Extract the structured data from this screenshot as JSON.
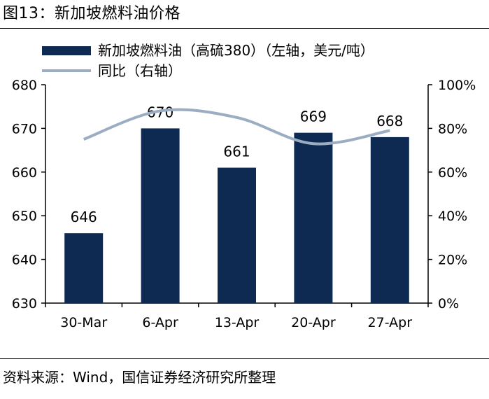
{
  "title": "图13：新加坡燃料油价格",
  "source": "资料来源：Wind，国信证券经济研究所整理",
  "colors": {
    "bar": "#0e2a52",
    "line": "#9badc2",
    "axis": "#000000"
  },
  "chart_data": {
    "type": "bar",
    "categories": [
      "30-Mar",
      "6-Apr",
      "13-Apr",
      "20-Apr",
      "27-Apr"
    ],
    "series": [
      {
        "name": "新加坡燃料油（高硫380）（左轴，美元/吨）",
        "type": "bar",
        "axis": "left",
        "values": [
          646,
          670,
          661,
          669,
          668
        ]
      },
      {
        "name": "同比（右轴）",
        "type": "line",
        "axis": "right",
        "values": [
          75,
          88,
          85,
          73,
          79
        ]
      }
    ],
    "data_labels": [
      "646",
      "670",
      "661",
      "669",
      "668"
    ],
    "ylim_left": [
      630,
      680
    ],
    "yticks_left": [
      "630",
      "640",
      "650",
      "660",
      "670",
      "680"
    ],
    "ylim_right": [
      0,
      100
    ],
    "yticks_right": [
      "0%",
      "20%",
      "40%",
      "60%",
      "80%",
      "100%"
    ],
    "legend_position": "top-left",
    "grid": false
  }
}
